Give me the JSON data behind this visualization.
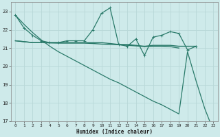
{
  "xlabel": "Humidex (Indice chaleur)",
  "background_color": "#ceeaea",
  "grid_color": "#b8d8d8",
  "line_color": "#2a7a6a",
  "x_values": [
    0,
    1,
    2,
    3,
    4,
    5,
    6,
    7,
    8,
    9,
    10,
    11,
    12,
    13,
    14,
    15,
    16,
    17,
    18,
    19,
    20,
    21,
    22,
    23
  ],
  "series1": [
    22.8,
    22.1,
    21.7,
    21.4,
    21.3,
    21.3,
    21.4,
    21.4,
    21.4,
    22.0,
    22.9,
    23.2,
    21.2,
    21.1,
    21.5,
    20.6,
    21.6,
    21.7,
    21.9,
    21.8,
    20.9,
    21.1,
    null,
    null
  ],
  "series2": [
    21.4,
    21.35,
    21.3,
    21.3,
    21.3,
    21.3,
    21.3,
    21.3,
    21.3,
    21.3,
    21.3,
    21.25,
    21.2,
    21.2,
    21.15,
    21.1,
    21.15,
    21.15,
    21.15,
    21.1,
    21.1,
    21.1,
    null,
    null
  ],
  "series3": [
    21.4,
    21.35,
    21.3,
    21.3,
    21.28,
    21.27,
    21.27,
    21.27,
    21.27,
    21.25,
    21.22,
    21.2,
    21.18,
    21.15,
    21.12,
    21.08,
    21.1,
    21.1,
    21.08,
    21.0,
    null,
    null,
    null,
    null
  ],
  "series4": [
    22.8,
    22.3,
    21.85,
    21.45,
    21.1,
    20.8,
    20.55,
    20.3,
    20.05,
    19.8,
    19.55,
    19.3,
    19.1,
    18.85,
    18.6,
    18.35,
    18.1,
    17.9,
    17.65,
    17.4,
    20.8,
    19.2,
    17.7,
    16.5
  ],
  "ylim": [
    17,
    23.5
  ],
  "xlim": [
    -0.5,
    23.5
  ],
  "yticks": [
    17,
    18,
    19,
    20,
    21,
    22,
    23
  ],
  "xticks": [
    0,
    1,
    2,
    3,
    4,
    5,
    6,
    7,
    8,
    9,
    10,
    11,
    12,
    13,
    14,
    15,
    16,
    17,
    18,
    19,
    20,
    21,
    22,
    23
  ]
}
